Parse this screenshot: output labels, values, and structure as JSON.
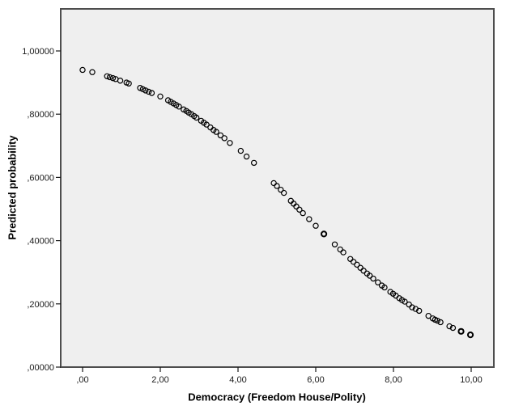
{
  "figure": {
    "background": "#ffffff"
  },
  "chart_data": {
    "type": "scatter",
    "title": "",
    "xlabel": "Democracy (Freedom House/Polity)",
    "ylabel": "Predicted probability",
    "xlim": [
      -0.5625,
      10.5833
    ],
    "ylim": [
      0,
      1.133
    ],
    "grid": false,
    "legend": false,
    "plot_background": "#efefef",
    "frame_color": "#4d4d4d",
    "tick_color": "#1a1a1a",
    "tick_label_color": "#1a1a1a",
    "marker": {
      "shape": "open-circle",
      "color": "#000000",
      "radius": 3.1,
      "stroke_width": 1.2,
      "bold_stroke_width": 2
    },
    "x_ticks": [
      {
        "value": 0,
        "label": ",00"
      },
      {
        "value": 2,
        "label": "2,00"
      },
      {
        "value": 4,
        "label": "4,00"
      },
      {
        "value": 6,
        "label": "6,00"
      },
      {
        "value": 8,
        "label": "8,00"
      },
      {
        "value": 10,
        "label": "10,00"
      }
    ],
    "y_ticks": [
      {
        "value": 0.0,
        "label": ",00000"
      },
      {
        "value": 0.2,
        "label": ",20000"
      },
      {
        "value": 0.4,
        "label": ",40000"
      },
      {
        "value": 0.6,
        "label": ",60000"
      },
      {
        "value": 0.8,
        "label": ",80000"
      },
      {
        "value": 1.0,
        "label": "1,00000"
      }
    ],
    "points": [
      [
        0.0,
        0.94
      ],
      [
        0.25,
        0.933
      ],
      [
        0.63,
        0.92
      ],
      [
        0.7,
        0.917
      ],
      [
        0.78,
        0.914
      ],
      [
        0.85,
        0.911
      ],
      [
        0.97,
        0.906
      ],
      [
        1.13,
        0.9
      ],
      [
        1.19,
        0.897
      ],
      [
        1.48,
        0.883
      ],
      [
        1.55,
        0.879
      ],
      [
        1.62,
        0.875
      ],
      [
        1.7,
        0.871
      ],
      [
        1.78,
        0.867
      ],
      [
        2.0,
        0.856
      ],
      [
        2.2,
        0.844
      ],
      [
        2.27,
        0.839
      ],
      [
        2.34,
        0.834
      ],
      [
        2.41,
        0.829
      ],
      [
        2.48,
        0.824
      ],
      [
        2.6,
        0.815
      ],
      [
        2.67,
        0.81
      ],
      [
        2.73,
        0.805
      ],
      [
        2.8,
        0.8
      ],
      [
        2.87,
        0.794
      ],
      [
        2.93,
        0.789
      ],
      [
        3.05,
        0.779
      ],
      [
        3.12,
        0.773
      ],
      [
        3.19,
        0.767
      ],
      [
        3.29,
        0.758
      ],
      [
        3.37,
        0.75
      ],
      [
        3.44,
        0.744
      ],
      [
        3.55,
        0.733
      ],
      [
        3.65,
        0.724
      ],
      [
        3.79,
        0.709
      ],
      [
        4.07,
        0.684
      ],
      [
        4.22,
        0.666
      ],
      [
        4.41,
        0.646
      ],
      [
        4.92,
        0.582
      ],
      [
        5.0,
        0.573
      ],
      [
        5.1,
        0.561
      ],
      [
        5.18,
        0.551
      ],
      [
        5.36,
        0.526
      ],
      [
        5.43,
        0.517
      ],
      [
        5.5,
        0.508
      ],
      [
        5.58,
        0.498
      ],
      [
        5.67,
        0.487
      ],
      [
        5.83,
        0.468
      ],
      [
        6.0,
        0.447
      ],
      [
        6.21,
        0.421,
        1
      ],
      [
        6.49,
        0.388
      ],
      [
        6.63,
        0.372
      ],
      [
        6.71,
        0.363
      ],
      [
        6.89,
        0.342
      ],
      [
        6.97,
        0.333
      ],
      [
        7.06,
        0.324
      ],
      [
        7.15,
        0.314
      ],
      [
        7.23,
        0.305
      ],
      [
        7.32,
        0.296
      ],
      [
        7.39,
        0.289
      ],
      [
        7.48,
        0.28
      ],
      [
        7.6,
        0.268
      ],
      [
        7.7,
        0.258
      ],
      [
        7.77,
        0.252
      ],
      [
        7.92,
        0.238
      ],
      [
        7.99,
        0.232
      ],
      [
        8.06,
        0.226
      ],
      [
        8.15,
        0.218
      ],
      [
        8.22,
        0.212
      ],
      [
        8.29,
        0.207
      ],
      [
        8.4,
        0.198
      ],
      [
        8.48,
        0.189
      ],
      [
        8.57,
        0.184
      ],
      [
        8.66,
        0.178
      ],
      [
        8.9,
        0.162
      ],
      [
        9.01,
        0.154
      ],
      [
        9.07,
        0.15
      ],
      [
        9.13,
        0.147
      ],
      [
        9.21,
        0.142
      ],
      [
        9.44,
        0.129
      ],
      [
        9.53,
        0.124
      ],
      [
        9.74,
        0.113,
        1
      ],
      [
        9.98,
        0.102,
        1
      ]
    ]
  }
}
